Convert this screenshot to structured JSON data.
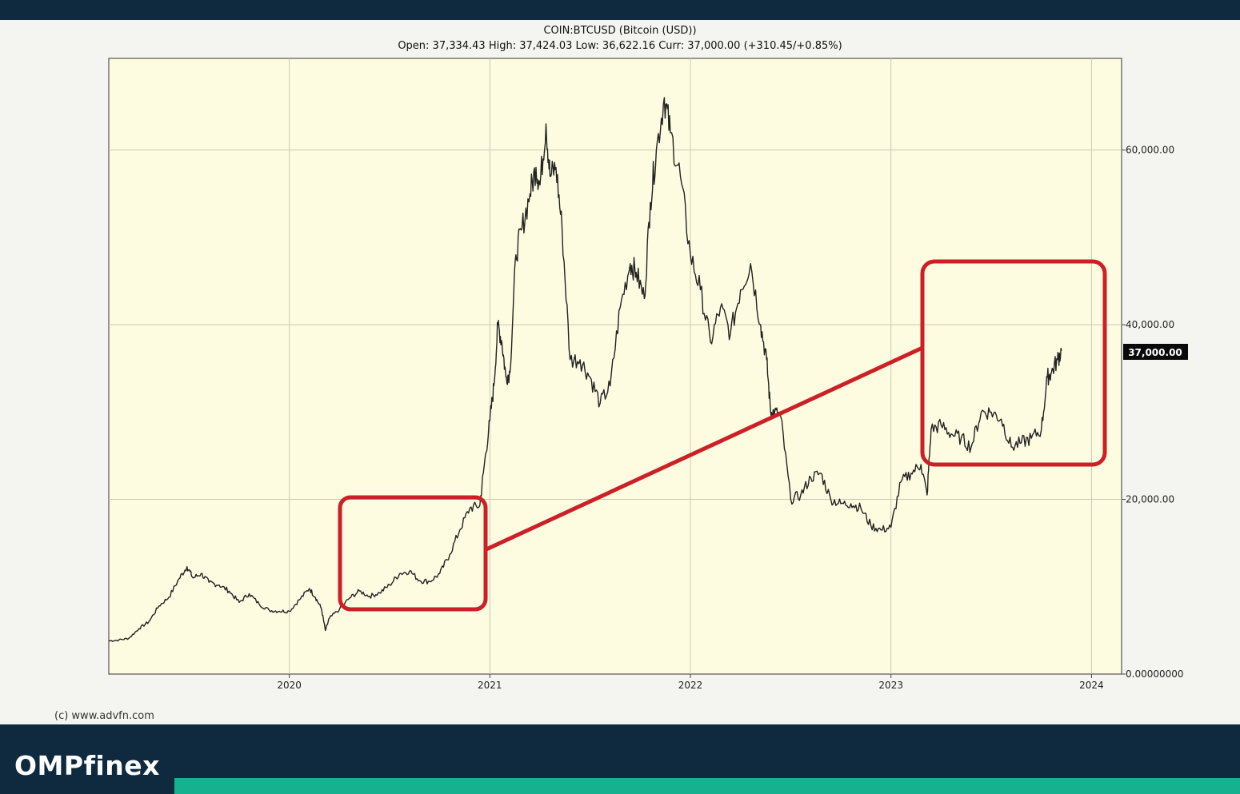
{
  "brand": {
    "name": "OMPfinex"
  },
  "credit": "(c) www.advfn.com",
  "colors": {
    "dark": "#0f2a3f",
    "accent": "#16b28f",
    "plot_bg": "#fdfce0",
    "line": "#222222",
    "highlight": "#cc1f26"
  },
  "chart_data": {
    "type": "line",
    "title": "COIN:BTCUSD (Bitcoin (USD))",
    "subtitle": "Open: 37,334.43 High: 37,424.03 Low: 36,622.16 Curr: 37,000.00 (+310.45/+0.85%)",
    "x_ticks": [
      "2020",
      "2021",
      "2022",
      "2023",
      "2024"
    ],
    "y_ticks": [
      "60,000.00",
      "40,000.00",
      "20,000.00",
      "0.00000000"
    ],
    "y_tick_values": [
      60000,
      40000,
      20000,
      0
    ],
    "ylim": [
      0,
      70500
    ],
    "xlim": [
      2019.1,
      2024.15
    ],
    "current_label": "37,000.00",
    "current_value": 37000,
    "grid": true,
    "series": [
      {
        "x": [
          2019.1,
          2019.15,
          2019.2,
          2019.25,
          2019.3,
          2019.35,
          2019.4,
          2019.45,
          2019.49,
          2019.52,
          2019.56,
          2019.6,
          2019.65,
          2019.7,
          2019.75,
          2019.8,
          2019.85,
          2019.9,
          2019.95,
          2020.0,
          2020.05,
          2020.1,
          2020.13,
          2020.16,
          2020.18,
          2020.2,
          2020.25,
          2020.3,
          2020.35,
          2020.4,
          2020.45,
          2020.5,
          2020.55,
          2020.6,
          2020.65,
          2020.7,
          2020.75,
          2020.8,
          2020.85,
          2020.9,
          2020.95,
          2020.97,
          2021.0,
          2021.02,
          2021.04,
          2021.06,
          2021.08,
          2021.1,
          2021.13,
          2021.16,
          2021.2,
          2021.23,
          2021.25,
          2021.28,
          2021.3,
          2021.33,
          2021.36,
          2021.4,
          2021.45,
          2021.5,
          2021.55,
          2021.6,
          2021.65,
          2021.7,
          2021.73,
          2021.77,
          2021.8,
          2021.83,
          2021.87,
          2021.9,
          2021.95,
          2022.0,
          2022.05,
          2022.1,
          2022.15,
          2022.2,
          2022.25,
          2022.3,
          2022.35,
          2022.38,
          2022.4,
          2022.42,
          2022.45,
          2022.5,
          2022.55,
          2022.6,
          2022.65,
          2022.7,
          2022.75,
          2022.8,
          2022.85,
          2022.9,
          2022.95,
          2023.0,
          2023.05,
          2023.1,
          2023.15,
          2023.18,
          2023.2,
          2023.25,
          2023.3,
          2023.35,
          2023.4,
          2023.45,
          2023.5,
          2023.55,
          2023.6,
          2023.65,
          2023.7,
          2023.75,
          2023.78,
          2023.8,
          2023.83,
          2023.85
        ],
        "y": [
          3800,
          3900,
          4100,
          5200,
          6000,
          7800,
          8800,
          10900,
          12300,
          11000,
          11500,
          10500,
          10200,
          9500,
          8200,
          9200,
          8000,
          7300,
          7200,
          7200,
          8500,
          9800,
          8800,
          7500,
          5000,
          6400,
          7400,
          8700,
          9500,
          8900,
          9300,
          10200,
          11500,
          11800,
          10700,
          10600,
          11500,
          13700,
          16500,
          19000,
          19300,
          23500,
          29000,
          33000,
          40000,
          38000,
          34000,
          34500,
          48000,
          51000,
          55000,
          58000,
          56000,
          63000,
          57000,
          58000,
          51000,
          36000,
          36000,
          34000,
          31000,
          33000,
          42000,
          47000,
          46000,
          43000,
          54000,
          60000,
          66000,
          62000,
          57000,
          48000,
          44000,
          38000,
          42000,
          39000,
          44000,
          47000,
          40000,
          36000,
          30000,
          30000,
          29500,
          20000,
          20500,
          22500,
          23000,
          20000,
          19500,
          19500,
          19000,
          17000,
          16500,
          16800,
          22000,
          23000,
          24000,
          20500,
          28000,
          28500,
          27500,
          27000,
          26000,
          30000,
          30000,
          29200,
          26000,
          26500,
          27000,
          28000,
          34000,
          34500,
          36000,
          37000
        ]
      }
    ]
  }
}
